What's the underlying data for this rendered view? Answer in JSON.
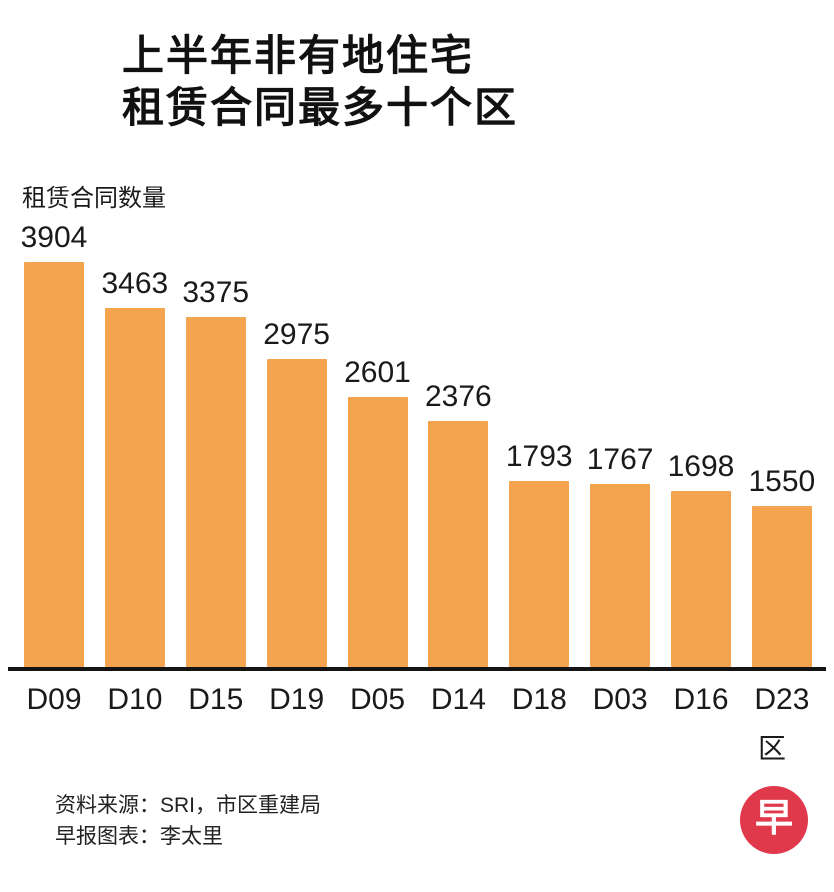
{
  "title": {
    "line1": "上半年非有地住宅",
    "line2": "租赁合同最多十个区"
  },
  "chart_data": {
    "type": "bar",
    "title": "上半年非有地住宅租赁合同最多十个区",
    "ylabel": "租赁合同数量",
    "xlabel": "区",
    "categories": [
      "D09",
      "D10",
      "D15",
      "D19",
      "D05",
      "D14",
      "D18",
      "D03",
      "D16",
      "D23"
    ],
    "values": [
      3904,
      3463,
      3375,
      2975,
      2601,
      2376,
      1793,
      1767,
      1698,
      1550
    ],
    "ylim": [
      0,
      4100
    ],
    "grid": false,
    "data_labels": true,
    "legend": "none",
    "bar_color": "#F4A44F",
    "axis_color": "#141414"
  },
  "footer": {
    "source": "资料来源：SRI，市区重建局",
    "credit": "早报图表：李太里"
  },
  "logo": {
    "char": "早",
    "color": "#E0394B"
  }
}
